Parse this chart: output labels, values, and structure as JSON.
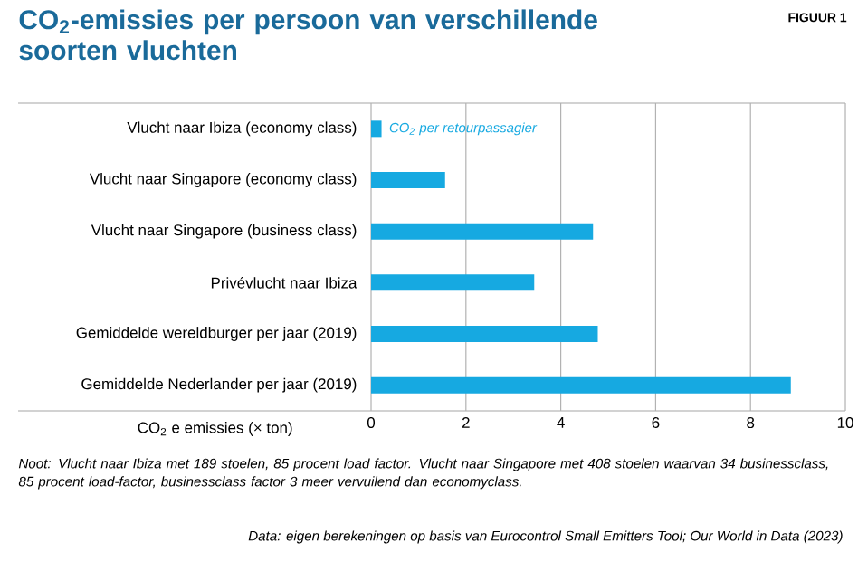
{
  "chart_data": {
    "type": "bar",
    "orientation": "horizontal",
    "title": "CO$_{2}$-emissies per persoon van verschillende soorten vluchten",
    "categories": [
      "Vlucht naar Ibiza (economy class)",
      "Vlucht naar Singapore (economy class)",
      "Vlucht naar Singapore (business class)",
      "Privévlucht naar Ibiza",
      "Gemiddelde wereldburger per jaar (2019)",
      "Gemiddelde Nederlander per jaar (2019)"
    ],
    "values": [
      0.22,
      1.56,
      4.68,
      3.44,
      4.78,
      8.85
    ],
    "color": "#16a9e1",
    "xlabel": "CO$_{2}$ e emissies (× ton)",
    "xlim": [
      0,
      10
    ],
    "xticks": [
      0,
      2,
      4,
      6,
      8,
      10
    ],
    "grid": "x",
    "annotations": [
      "FIGUUR 1",
      {
        "text": "CO$_{2}$ per retourpassagier",
        "x": 0.22,
        "y": "Vlucht naar Ibiza (economy class)"
      },
      "Noot: Vlucht naar Ibiza met 189 stoelen, 85 procent load factor. Vlucht naar Singapore met 408 stoelen waarvan 34 businessclass, 85 procent load-factor, businessclass factor 3 meer vervuilend dan economyclass.",
      "Data: eigen berekeningen op basis van Eurocontrol Small Emitters Tool; Our World in Data (2023)"
    ]
  }
}
